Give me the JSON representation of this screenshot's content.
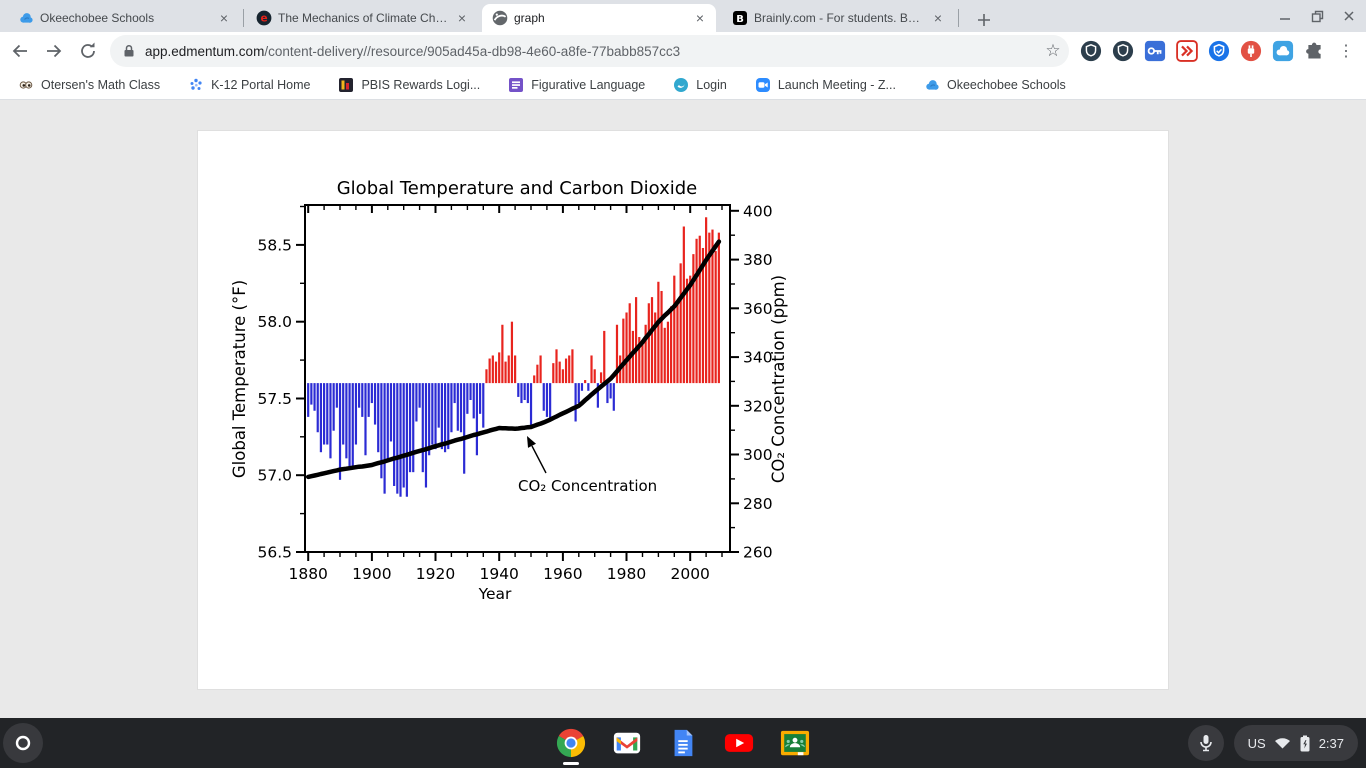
{
  "browser": {
    "tabs": [
      {
        "title": "Okeechobee Schools",
        "icon": "cloud-favicon"
      },
      {
        "title": "The Mechanics of Climate Chan",
        "icon": "edmentum-favicon"
      },
      {
        "title": "graph",
        "icon": "globe-favicon",
        "active": true
      },
      {
        "title": "Brainly.com - For students. By st",
        "icon": "brainly-favicon"
      }
    ],
    "url": {
      "domain": "app.edmentum.com",
      "path": "/content-delivery//resource/905ad45a-db98-4e60-a8fe-77babb857cc3"
    },
    "bookmarks": [
      {
        "label": "Otersen's Math Class",
        "icon": "eyes-icon"
      },
      {
        "label": "K-12 Portal Home",
        "icon": "portal-dots-icon"
      },
      {
        "label": "PBIS Rewards Logi...",
        "icon": "pbis-icon"
      },
      {
        "label": "Figurative Language",
        "icon": "purple-list-icon"
      },
      {
        "label": "Login",
        "icon": "teal-circle-icon"
      },
      {
        "label": "Launch Meeting - Z...",
        "icon": "zoom-camera-icon"
      },
      {
        "label": "Okeechobee Schools",
        "icon": "cloud-icon"
      }
    ],
    "extensions": [
      "shield-dark-icon",
      "shield-dark-icon",
      "key-blue-icon",
      "fast-forward-red-icon",
      "shield-blue-icon",
      "plug-red-icon",
      "cloud-blue-icon",
      "puzzle-icon"
    ]
  },
  "shelf": {
    "apps": [
      "chrome",
      "gmail",
      "docs",
      "youtube",
      "classroom"
    ],
    "status": {
      "keyboard": "US",
      "time": "2:37"
    }
  },
  "chart_data": {
    "type": "bar",
    "title": "Global Temperature and Carbon Dioxide",
    "xlabel": "Year",
    "ylabel_left": "Global Temperature (°F)",
    "ylabel_right": "CO₂ Concentration (ppm)",
    "annotation": "CO₂ Concentration",
    "x_ticks": [
      1880,
      1900,
      1920,
      1940,
      1960,
      1980,
      2000
    ],
    "y_left_ticks": [
      56.5,
      57.0,
      57.5,
      58.0,
      58.5
    ],
    "y_right_ticks": [
      260,
      280,
      300,
      320,
      340,
      360,
      380,
      400
    ],
    "x_axis_range": [
      1879,
      2012.5
    ],
    "y_left_range": [
      56.5,
      58.76
    ],
    "y_right_range": [
      260,
      402.4
    ],
    "baseline_f": 57.6,
    "bar_color_above": "#e8241e",
    "bar_color_below": "#2b2bd4",
    "line_color": "#000000",
    "year_start": 1880,
    "temperature_f": [
      57.38,
      57.46,
      57.42,
      57.28,
      57.15,
      57.2,
      57.2,
      57.11,
      57.29,
      57.44,
      56.97,
      57.2,
      57.11,
      57.04,
      57.06,
      57.2,
      57.44,
      57.38,
      57.13,
      57.38,
      57.47,
      57.33,
      57.15,
      56.98,
      56.88,
      57.1,
      57.22,
      56.93,
      56.88,
      56.86,
      56.92,
      56.86,
      57.02,
      57.02,
      57.35,
      57.44,
      57.02,
      56.92,
      57.13,
      57.2,
      57.17,
      57.31,
      57.17,
      57.15,
      57.17,
      57.28,
      57.47,
      57.29,
      57.28,
      57.01,
      57.4,
      57.49,
      57.37,
      57.13,
      57.4,
      57.31,
      57.69,
      57.76,
      57.78,
      57.74,
      57.8,
      57.98,
      57.74,
      57.78,
      58.0,
      57.78,
      57.51,
      57.47,
      57.49,
      57.47,
      57.31,
      57.65,
      57.72,
      57.78,
      57.42,
      57.38,
      57.35,
      57.73,
      57.82,
      57.74,
      57.69,
      57.76,
      57.78,
      57.82,
      57.35,
      57.47,
      57.55,
      57.62,
      57.55,
      57.78,
      57.69,
      57.44,
      57.67,
      57.94,
      57.47,
      57.5,
      57.42,
      57.98,
      57.78,
      58.02,
      58.06,
      58.12,
      57.94,
      58.16,
      57.9,
      57.88,
      57.98,
      58.12,
      58.16,
      58.06,
      58.26,
      58.2,
      57.96,
      58.0,
      58.1,
      58.3,
      58.12,
      58.38,
      58.62,
      58.28,
      58.3,
      58.44,
      58.54,
      58.56,
      58.48,
      58.68,
      58.58,
      58.6,
      58.46,
      58.58
    ],
    "co2_ppm": [
      290.8,
      291.1,
      291.4,
      291.7,
      292.0,
      292.3,
      292.6,
      292.9,
      293.2,
      293.5,
      293.8,
      294.0,
      294.2,
      294.4,
      294.6,
      294.8,
      295.0,
      295.1,
      295.3,
      295.5,
      295.7,
      296.1,
      296.5,
      296.8,
      297.2,
      297.6,
      298.0,
      298.4,
      298.7,
      299.1,
      299.5,
      299.9,
      300.3,
      300.7,
      301.1,
      301.5,
      301.8,
      302.2,
      302.6,
      303.0,
      303.4,
      303.8,
      304.2,
      304.5,
      304.9,
      305.3,
      305.7,
      306.1,
      306.4,
      306.8,
      307.2,
      307.6,
      308.0,
      308.3,
      308.7,
      309.1,
      309.4,
      309.8,
      310.2,
      310.5,
      310.9,
      310.8,
      310.8,
      310.7,
      310.7,
      310.6,
      310.7,
      310.9,
      311.0,
      311.2,
      311.3,
      311.8,
      312.3,
      312.7,
      313.2,
      313.7,
      314.3,
      315.0,
      315.6,
      316.3,
      316.9,
      317.5,
      318.1,
      318.8,
      319.4,
      320.0,
      321.1,
      322.3,
      323.4,
      324.6,
      325.7,
      326.8,
      327.9,
      329.0,
      330.0,
      331.1,
      332.6,
      334.1,
      335.7,
      337.2,
      338.7,
      340.2,
      341.7,
      343.1,
      344.6,
      346.1,
      347.8,
      349.4,
      351.1,
      352.7,
      354.4,
      355.7,
      357.0,
      358.2,
      359.5,
      360.8,
      362.5,
      364.3,
      366.0,
      367.8,
      369.5,
      371.6,
      373.6,
      375.7,
      377.7,
      379.8,
      381.7,
      383.6,
      385.5,
      387.4
    ]
  }
}
